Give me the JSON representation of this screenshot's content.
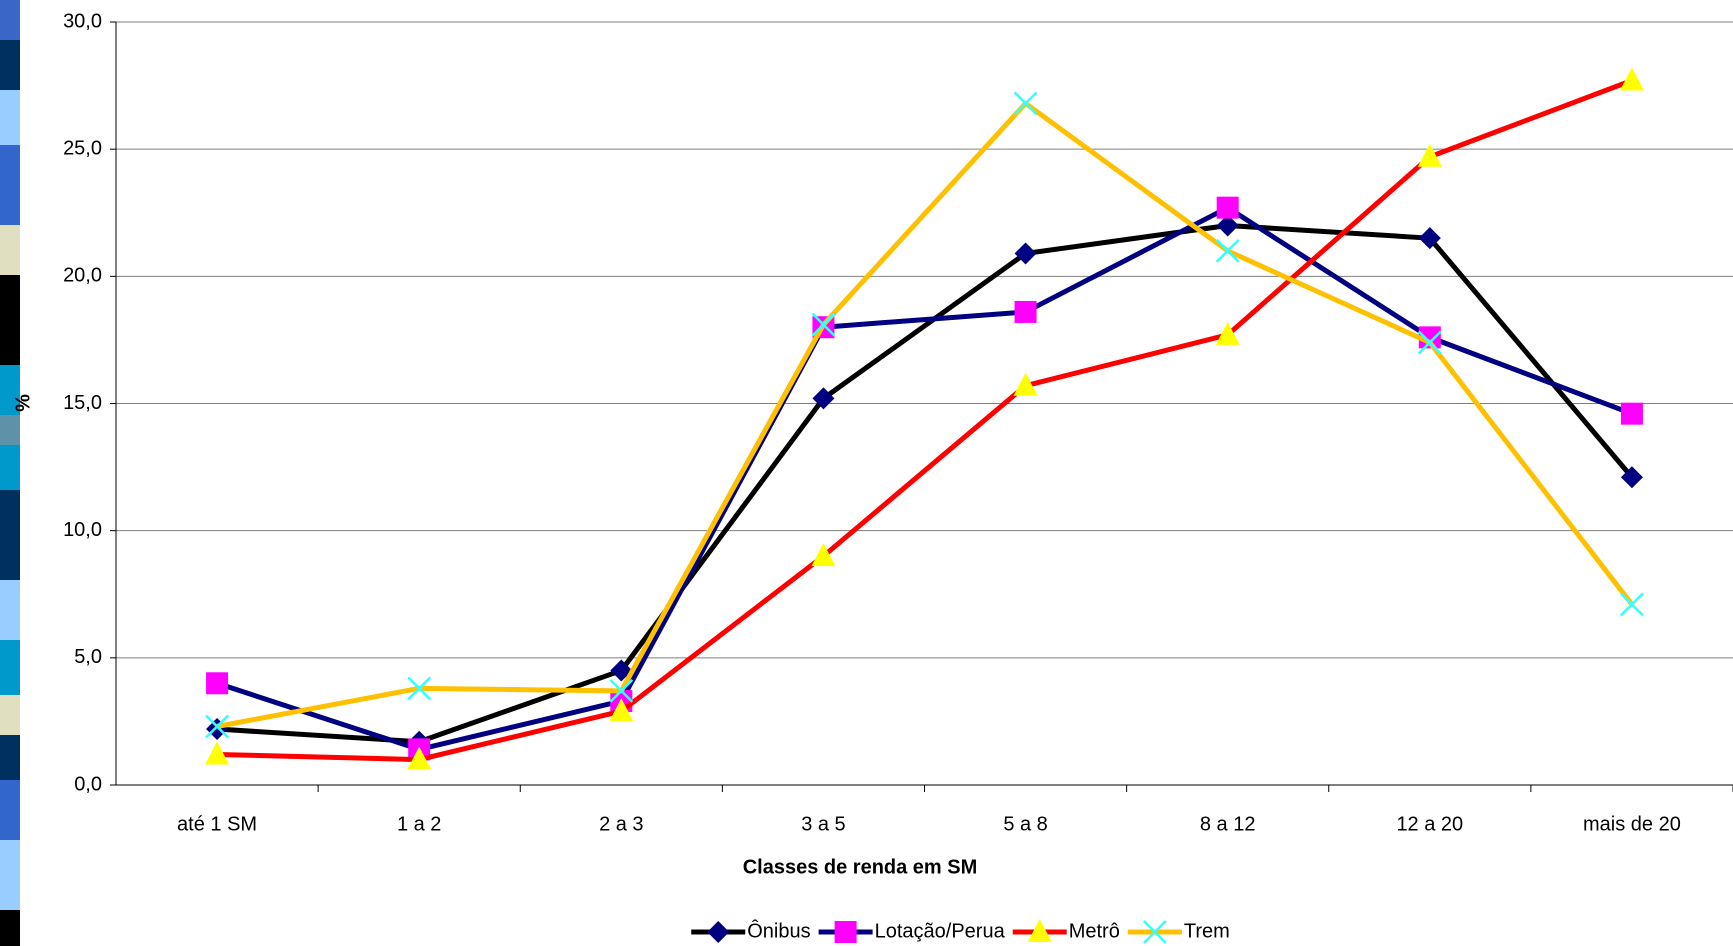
{
  "chart_data": {
    "type": "line",
    "x_label": "Classes de renda em SM",
    "y_label": "%",
    "categories": [
      "até 1 SM",
      "1 a 2",
      "2 a 3",
      "3 a 5",
      "5 a 8",
      "8 a 12",
      "12 a 20",
      "mais de 20"
    ],
    "series": [
      {
        "name": "Ônibus",
        "color": "#000000",
        "marker": "diamond",
        "marker_color": "#000080",
        "values": [
          2.2,
          1.7,
          4.5,
          15.2,
          20.9,
          22.0,
          21.5,
          12.1
        ]
      },
      {
        "name": "Lotação/Perua",
        "color": "#000080",
        "marker": "square",
        "marker_color": "#ff00ff",
        "values": [
          4.0,
          1.4,
          3.3,
          18.0,
          18.6,
          22.7,
          17.6,
          14.6
        ]
      },
      {
        "name": "Metrô",
        "color": "#ff0000",
        "marker": "triangle",
        "marker_color": "#ffff00",
        "values": [
          1.2,
          1.0,
          2.9,
          9.0,
          15.7,
          17.7,
          24.7,
          27.7
        ]
      },
      {
        "name": "Trem",
        "color": "#ffc000",
        "marker": "x",
        "marker_color": "#33ffff",
        "values": [
          2.3,
          3.8,
          3.7,
          18.1,
          26.8,
          21.0,
          17.4,
          7.1
        ]
      }
    ],
    "ylim": [
      0,
      30
    ],
    "yticks": [
      {
        "value": 0,
        "label": "0,0"
      },
      {
        "value": 5,
        "label": "5,0"
      },
      {
        "value": 10,
        "label": "10,0"
      },
      {
        "value": 15,
        "label": "15,0"
      },
      {
        "value": 20,
        "label": "20,0"
      },
      {
        "value": 25,
        "label": "25,0"
      },
      {
        "value": 30,
        "label": "30,0"
      }
    ],
    "grid": true,
    "legend": "bottom"
  }
}
